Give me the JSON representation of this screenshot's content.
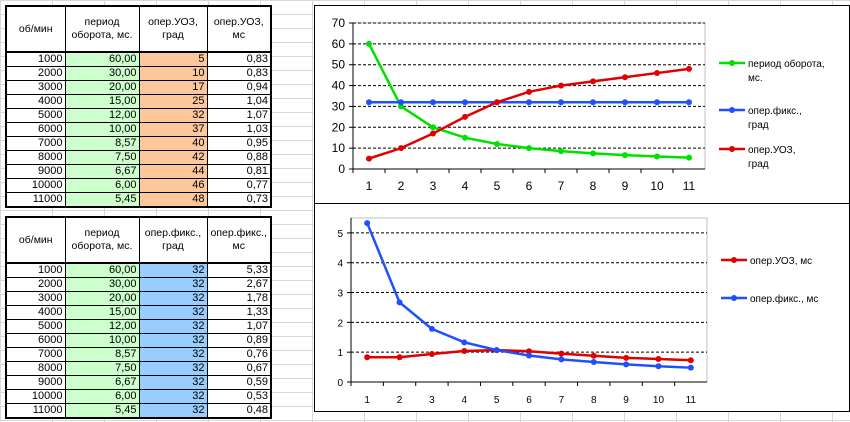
{
  "table1": {
    "headers": [
      "об/мин",
      "период оборота, мс.",
      "опер.УОЗ, град",
      "опер.УОЗ, мс"
    ],
    "rows": [
      [
        "1000",
        "60,00",
        "5",
        "0,83"
      ],
      [
        "2000",
        "30,00",
        "10",
        "0,83"
      ],
      [
        "3000",
        "20,00",
        "17",
        "0,94"
      ],
      [
        "4000",
        "15,00",
        "25",
        "1,04"
      ],
      [
        "5000",
        "12,00",
        "32",
        "1,07"
      ],
      [
        "6000",
        "10,00",
        "37",
        "1,03"
      ],
      [
        "7000",
        "8,57",
        "40",
        "0,95"
      ],
      [
        "8000",
        "7,50",
        "42",
        "0,88"
      ],
      [
        "9000",
        "6,67",
        "44",
        "0,81"
      ],
      [
        "10000",
        "6,00",
        "46",
        "0,77"
      ],
      [
        "11000",
        "5,45",
        "48",
        "0,73"
      ]
    ]
  },
  "table2": {
    "headers": [
      "об/мин",
      "период оборота, мс.",
      "опер.фикс., град",
      "опер.фикс., мс"
    ],
    "rows": [
      [
        "1000",
        "60,00",
        "32",
        "5,33"
      ],
      [
        "2000",
        "30,00",
        "32",
        "2,67"
      ],
      [
        "3000",
        "20,00",
        "32",
        "1,78"
      ],
      [
        "4000",
        "15,00",
        "32",
        "1,33"
      ],
      [
        "5000",
        "12,00",
        "32",
        "1,07"
      ],
      [
        "6000",
        "10,00",
        "32",
        "0,89"
      ],
      [
        "7000",
        "8,57",
        "32",
        "0,76"
      ],
      [
        "8000",
        "7,50",
        "32",
        "0,67"
      ],
      [
        "9000",
        "6,67",
        "32",
        "0,59"
      ],
      [
        "10000",
        "6,00",
        "32",
        "0,53"
      ],
      [
        "11000",
        "5,45",
        "32",
        "0,48"
      ]
    ]
  },
  "chart_data": [
    {
      "type": "line",
      "categories": [
        "1",
        "2",
        "3",
        "4",
        "5",
        "6",
        "7",
        "8",
        "9",
        "10",
        "11"
      ],
      "ylim": [
        0,
        70
      ],
      "yticks": [
        "0",
        "10",
        "20",
        "30",
        "40",
        "50",
        "60",
        "70"
      ],
      "grid": true,
      "legend": "right",
      "series": [
        {
          "name": "период оборота, мс.",
          "color": "#00e000",
          "values": [
            60,
            30,
            20,
            15,
            12,
            10,
            8.57,
            7.5,
            6.67,
            6,
            5.45
          ]
        },
        {
          "name": "опер.фикс., град",
          "color": "#1e50ff",
          "values": [
            32,
            32,
            32,
            32,
            32,
            32,
            32,
            32,
            32,
            32,
            32
          ]
        },
        {
          "name": "опер.УОЗ, град",
          "color": "#e00000",
          "values": [
            5,
            10,
            17,
            25,
            32,
            37,
            40,
            42,
            44,
            46,
            48
          ]
        }
      ]
    },
    {
      "type": "line",
      "categories": [
        "1",
        "2",
        "3",
        "4",
        "5",
        "6",
        "7",
        "8",
        "9",
        "10",
        "11"
      ],
      "ylim": [
        0,
        5.5
      ],
      "yticks": [
        "0",
        "1",
        "2",
        "3",
        "4",
        "5"
      ],
      "grid": true,
      "legend": "right",
      "series": [
        {
          "name": "опер.УОЗ, мс",
          "color": "#e00000",
          "values": [
            0.83,
            0.83,
            0.94,
            1.04,
            1.07,
            1.03,
            0.95,
            0.88,
            0.81,
            0.77,
            0.73
          ]
        },
        {
          "name": "опер.фикс., мс",
          "color": "#1e50ff",
          "values": [
            5.33,
            2.67,
            1.78,
            1.33,
            1.07,
            0.89,
            0.76,
            0.67,
            0.59,
            0.53,
            0.48
          ]
        }
      ]
    }
  ]
}
